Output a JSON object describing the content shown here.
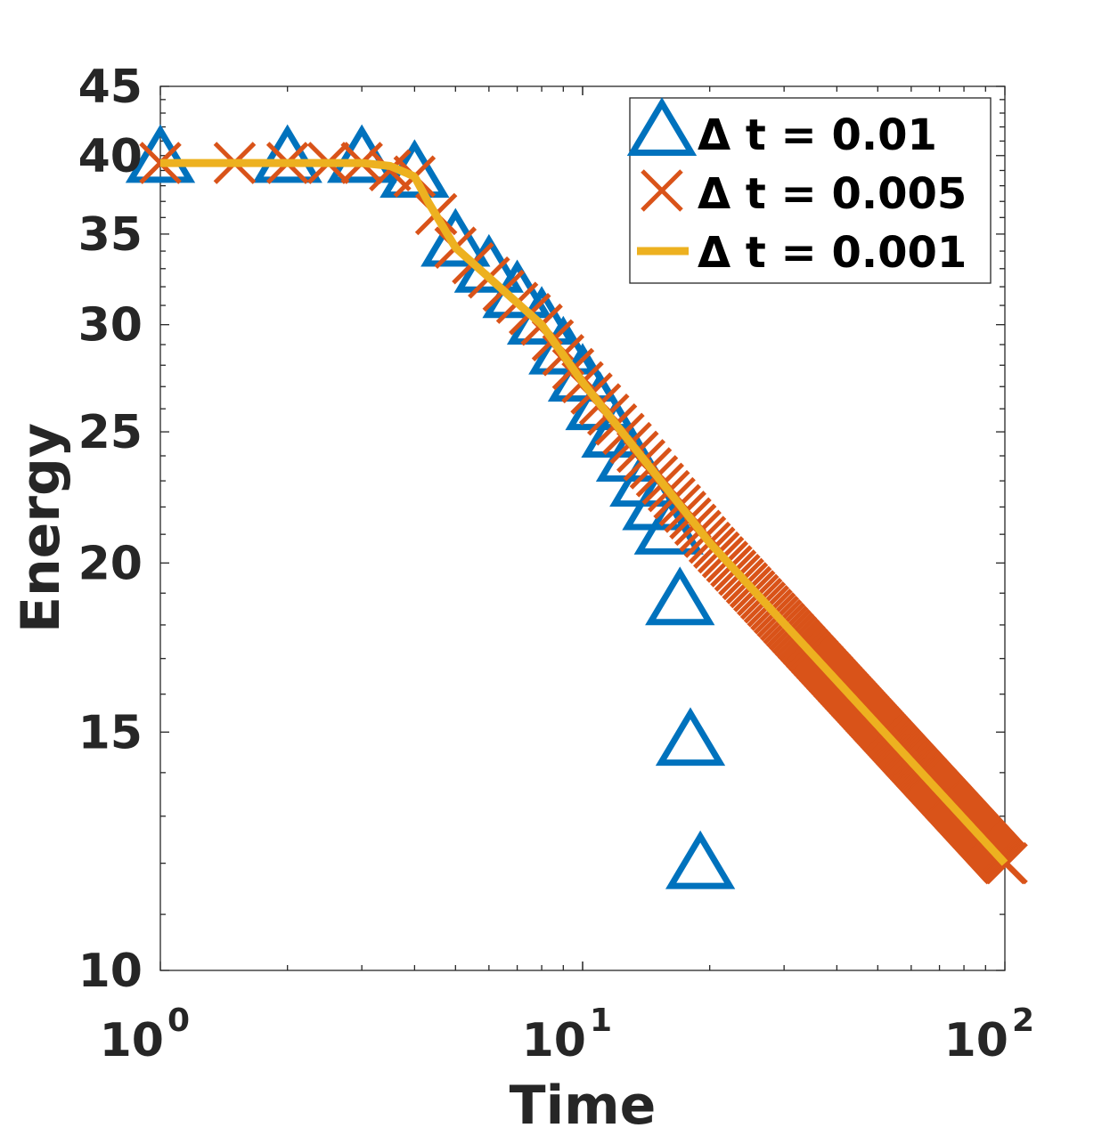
{
  "chart_data": {
    "type": "line",
    "xscale": "log",
    "yscale": "log",
    "xlabel": "Time",
    "ylabel": "Energy",
    "xlim": [
      1,
      100
    ],
    "ylim": [
      10,
      45
    ],
    "xticks": [
      {
        "base": "10",
        "exp": "0",
        "value": 1
      },
      {
        "base": "10",
        "exp": "1",
        "value": 10
      },
      {
        "base": "10",
        "exp": "2",
        "value": 100
      }
    ],
    "yticks": [
      {
        "label": "10",
        "value": 10
      },
      {
        "label": "15",
        "value": 15
      },
      {
        "label": "20",
        "value": 20
      },
      {
        "label": "25",
        "value": 25
      },
      {
        "label": "30",
        "value": 30
      },
      {
        "label": "35",
        "value": 35
      },
      {
        "label": "40",
        "value": 40
      },
      {
        "label": "45",
        "value": 45
      }
    ],
    "legend_position": "top-right",
    "series": [
      {
        "name": "dt_0.01",
        "legend_label": "Δ t = 0.01",
        "marker": "triangle",
        "color": "#0072BD",
        "x": [
          1,
          2,
          3,
          4,
          5,
          6,
          7,
          8,
          9,
          10,
          11,
          12,
          13,
          14,
          15,
          16,
          17,
          18,
          19
        ],
        "y": [
          39.9,
          39.9,
          39.9,
          38.9,
          34.6,
          33.1,
          31.7,
          30.3,
          28.8,
          27.5,
          26.2,
          25.0,
          24.0,
          23.0,
          22.1,
          21.2,
          18.8,
          14.8,
          12.0
        ]
      },
      {
        "name": "dt_0.005",
        "legend_label": "Δ t = 0.005",
        "marker": "x",
        "color": "#D95319",
        "generator": {
          "x_start": 1,
          "x_end": 100,
          "count": 199,
          "anchors_x": [
            1,
            3,
            4,
            5,
            8,
            10,
            20,
            100
          ],
          "anchors_y": [
            39.5,
            39.5,
            38.6,
            34.2,
            30.0,
            27.2,
            20.7,
            12.0
          ]
        }
      },
      {
        "name": "dt_0.001",
        "legend_label": "Δ t = 0.001",
        "marker": "line",
        "color": "#EDB120",
        "x": [
          1,
          3,
          3.5,
          4,
          4.3,
          5,
          8,
          10,
          20,
          100
        ],
        "y": [
          39.5,
          39.5,
          39.3,
          38.6,
          37.0,
          34.2,
          30.0,
          27.2,
          20.7,
          12.0
        ]
      }
    ]
  }
}
